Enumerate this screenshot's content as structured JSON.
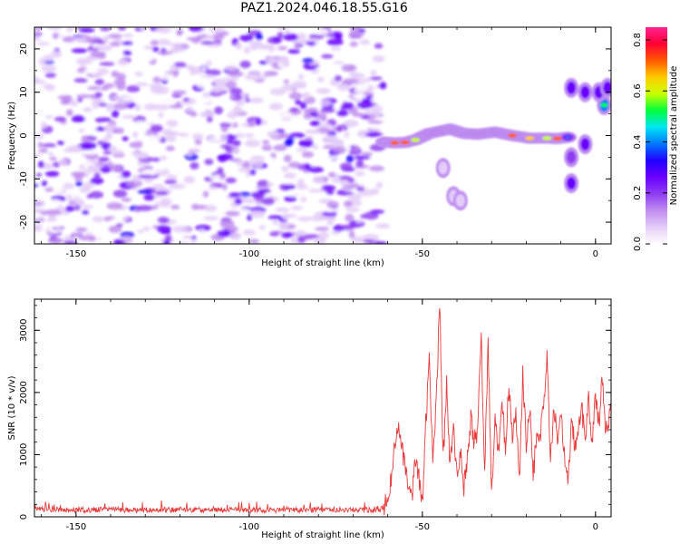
{
  "figure": {
    "title": "PAZ1.2024.046.18.55.G16"
  },
  "chart_data": [
    {
      "type": "heatmap",
      "xlabel": "Height of straight line (km)",
      "ylabel": "Frequency (Hz)",
      "xlim": [
        -162,
        4.5
      ],
      "ylim": [
        -25,
        25
      ],
      "xticks": [
        -150,
        -100,
        -50,
        0
      ],
      "yticks": [
        -20,
        -10,
        0,
        10,
        20
      ],
      "colorbar": {
        "label": "Normalized spectral amplitude",
        "range": [
          0,
          0.85
        ],
        "ticks": [
          0.0,
          0.2,
          0.4,
          0.6,
          0.8
        ]
      },
      "colormap": [
        "#ffffff",
        "#e4ccf8",
        "#bf8df0",
        "#8f3ef2",
        "#6a00ff",
        "#2200ff",
        "#0077ff",
        "#00e5f2",
        "#00ff3c",
        "#c8ff00",
        "#ffcc00",
        "#ff5a00",
        "#ff0033",
        "#ff2090"
      ],
      "noise_region": {
        "x_range": [
          -162,
          -61
        ],
        "freq_range": [
          -25,
          25
        ],
        "level_range": [
          0.02,
          0.3
        ]
      },
      "ridge": [
        {
          "x": -61,
          "freq": -1.5,
          "amplitude": 0.45
        },
        {
          "x": -58,
          "freq": -1.7,
          "amplitude": 0.7
        },
        {
          "x": -55,
          "freq": -1.6,
          "amplitude": 0.75
        },
        {
          "x": -52,
          "freq": -1.0,
          "amplitude": 0.6
        },
        {
          "x": -48,
          "freq": 0.5,
          "amplitude": 0.45
        },
        {
          "x": -42,
          "freq": 1.5,
          "amplitude": 0.5
        },
        {
          "x": -38,
          "freq": 0.5,
          "amplitude": 0.45
        },
        {
          "x": -34,
          "freq": 0.3,
          "amplitude": 0.4
        },
        {
          "x": -29,
          "freq": 0.8,
          "amplitude": 0.45
        },
        {
          "x": -24,
          "freq": 0.0,
          "amplitude": 0.75
        },
        {
          "x": -19,
          "freq": -0.6,
          "amplitude": 0.65
        },
        {
          "x": -14,
          "freq": -0.6,
          "amplitude": 0.6
        },
        {
          "x": -11,
          "freq": -0.7,
          "amplitude": 0.75
        },
        {
          "x": -8,
          "freq": -0.4,
          "amplitude": 0.4
        }
      ],
      "spots": [
        {
          "x": -7,
          "freq": -5,
          "amplitude": 0.28
        },
        {
          "x": -7,
          "freq": -11,
          "amplitude": 0.35
        },
        {
          "x": -7,
          "freq": 11,
          "amplitude": 0.32
        },
        {
          "x": -3,
          "freq": 10,
          "amplitude": 0.35
        },
        {
          "x": -3,
          "freq": -2,
          "amplitude": 0.3
        },
        {
          "x": 2.5,
          "freq": 7,
          "amplitude": 0.5
        },
        {
          "x": 1,
          "freq": 10,
          "amplitude": 0.3
        },
        {
          "x": 3.5,
          "freq": 11,
          "amplitude": 0.32
        },
        {
          "x": -44,
          "freq": -7.5,
          "amplitude": 0.12
        },
        {
          "x": -41,
          "freq": -14,
          "amplitude": 0.1
        },
        {
          "x": -39,
          "freq": -15,
          "amplitude": 0.1
        }
      ]
    },
    {
      "type": "line",
      "xlabel": "Height of straight line (km)",
      "ylabel": "SNR (10 * v/v)",
      "xlim": [
        -162,
        4.5
      ],
      "ylim": [
        0,
        3500
      ],
      "xticks": [
        -150,
        -100,
        -50,
        0
      ],
      "yticks": [
        0,
        1000,
        2000,
        3000
      ],
      "color": "#e83a3a",
      "series": [
        {
          "x": [
            -162,
            -150,
            -140,
            -130,
            -120,
            -110,
            -100,
            -90,
            -80,
            -70,
            -62,
            -60,
            -59,
            -58,
            -57,
            -56,
            -55,
            -54,
            -53,
            -52,
            -51,
            -50,
            -49,
            -48,
            -47,
            -46,
            -45,
            -44,
            -43,
            -42,
            -41,
            -40,
            -39,
            -38,
            -37,
            -36,
            -35,
            -34,
            -33,
            -32,
            -31,
            -30,
            -29,
            -28,
            -27,
            -26,
            -25,
            -24,
            -23,
            -22,
            -21,
            -20,
            -19,
            -18,
            -17,
            -16,
            -15,
            -14,
            -13,
            -12,
            -11,
            -10,
            -9,
            -8,
            -7,
            -6,
            -5,
            -4,
            -3,
            -2,
            -1,
            0,
            1,
            2,
            3,
            4.5
          ],
          "y": [
            120,
            110,
            115,
            110,
            115,
            110,
            110,
            110,
            115,
            110,
            110,
            250,
            600,
            1200,
            1400,
            1100,
            900,
            500,
            300,
            900,
            600,
            200,
            1500,
            2500,
            1000,
            1800,
            3500,
            900,
            2100,
            800,
            1400,
            600,
            1100,
            500,
            900,
            1600,
            1200,
            1400,
            2900,
            700,
            2800,
            300,
            1500,
            1000,
            1900,
            1100,
            2100,
            1200,
            1700,
            600,
            2300,
            1200,
            1800,
            600,
            1400,
            1200,
            1900,
            2550,
            900,
            1800,
            1200,
            1600,
            1000,
            600,
            1450,
            1200,
            1300,
            1850,
            1100,
            1900,
            1200,
            2000,
            1450,
            2250,
            1350,
            1700
          ]
        }
      ]
    }
  ]
}
